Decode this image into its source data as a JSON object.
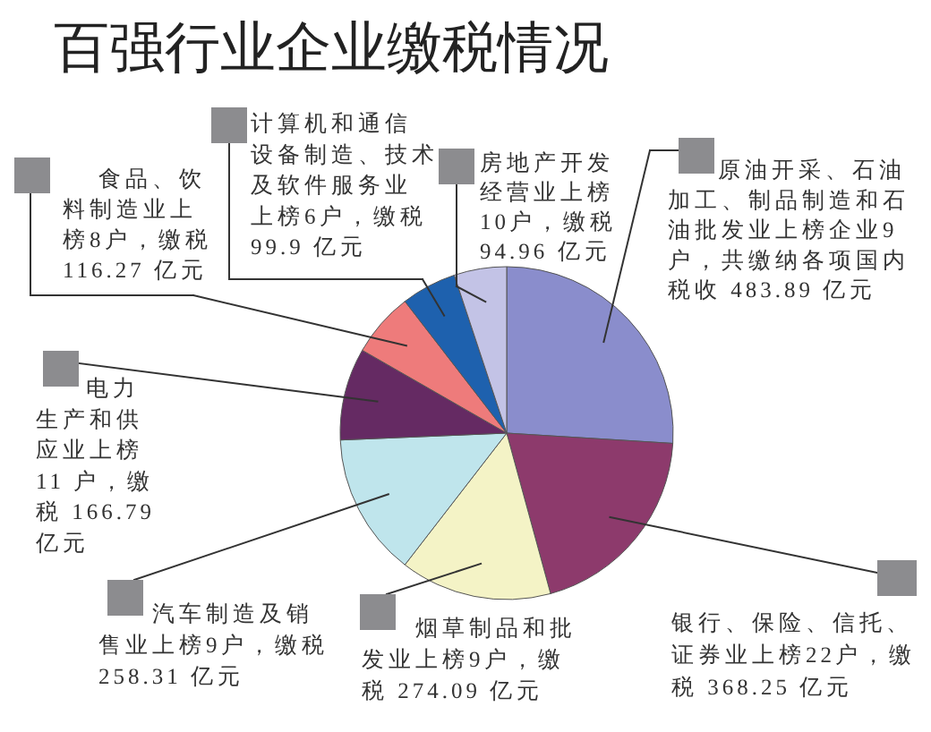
{
  "chart_data": {
    "type": "pie",
    "title": "百强行业企业缴税情况",
    "categories": [
      "原油开采、石油加工、制品制造和石油批发业上榜企业9户，共缴纳各项国内税收 483.89 亿元",
      "银行、保险、信托、证券业上榜22户，缴税 368.25 亿元",
      "烟草制品和批发业上榜9户，缴税 274.09 亿元",
      "汽车制造及销售业上榜9户，缴税258.31 亿元",
      "电力生产和供应业上榜11 户，缴税 166.79 亿元",
      "食品、饮料制造业上榜8户，缴税116.27 亿元",
      "计算机和通信设备制造、技术及软件服务业上榜6户，缴税99.9 亿元",
      "房地产开发经营业上榜10户，缴税94.96 亿元"
    ],
    "values": [
      483.89,
      368.25,
      274.09,
      258.31,
      166.79,
      116.27,
      99.9,
      94.96
    ],
    "colors": [
      "#8a8dcc",
      "#8d3a6c",
      "#f4f3c6",
      "#bfe5ec",
      "#652a63",
      "#ee7b7b",
      "#1e61ae",
      "#c3c3e6"
    ]
  }
}
